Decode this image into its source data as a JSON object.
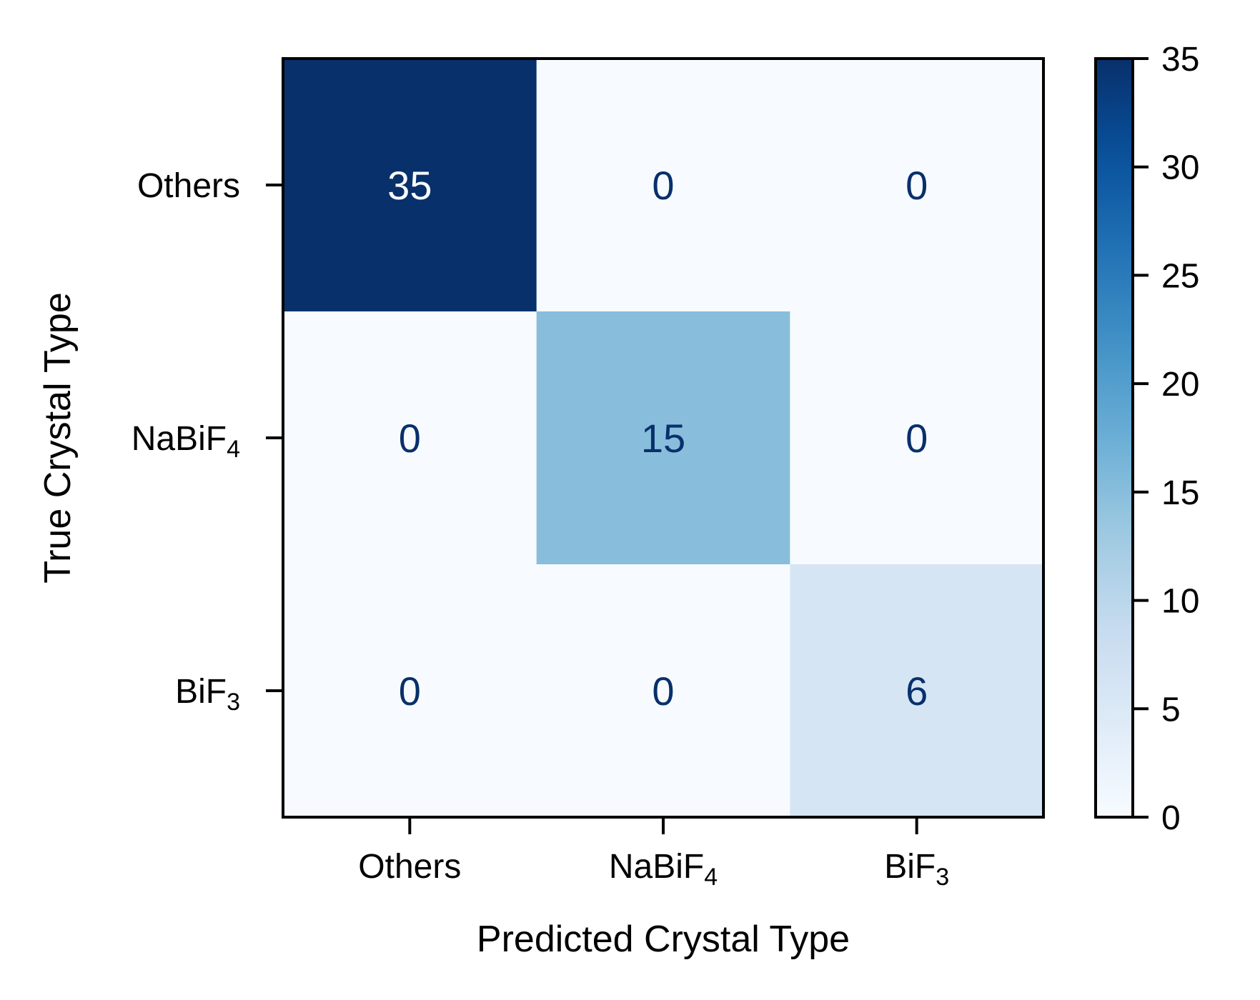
{
  "chart_data": {
    "type": "heatmap",
    "xlabel": "Predicted Crystal Type",
    "ylabel": "True Crystal Type",
    "x_categories": [
      {
        "base": "Others",
        "sub": ""
      },
      {
        "base": "NaBiF",
        "sub": "4"
      },
      {
        "base": "BiF",
        "sub": "3"
      }
    ],
    "y_categories": [
      {
        "base": "Others",
        "sub": ""
      },
      {
        "base": "NaBiF",
        "sub": "4"
      },
      {
        "base": "BiF",
        "sub": "3"
      }
    ],
    "matrix": [
      [
        35,
        0,
        0
      ],
      [
        0,
        15,
        0
      ],
      [
        0,
        0,
        6
      ]
    ],
    "colormap": "Blues",
    "colorbar": {
      "range": [
        0,
        35
      ],
      "ticks": [
        0,
        5,
        10,
        15,
        20,
        25,
        30,
        35
      ]
    },
    "text_color_dark": "#08306b",
    "text_color_light": "#f7fbff"
  }
}
